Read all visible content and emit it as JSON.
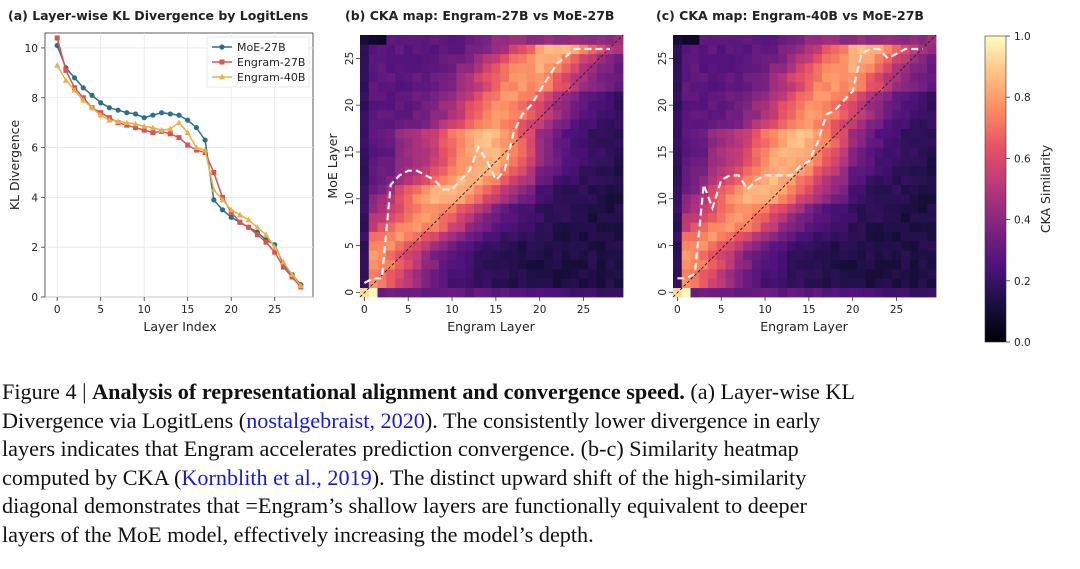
{
  "chart_data": [
    {
      "type": "line",
      "title": "(a) Layer-wise KL Divergence by LogitLens",
      "xlabel": "Layer Index",
      "ylabel": "KL Divergence",
      "xlim": [
        -1.4,
        29.4
      ],
      "ylim": [
        0,
        10.6
      ],
      "xticks": [
        "0",
        "5",
        "10",
        "15",
        "20",
        "25"
      ],
      "yticks": [
        "0",
        "2",
        "4",
        "6",
        "8",
        "10"
      ],
      "grid": true,
      "legend_position": "top-right",
      "x": [
        0,
        1,
        2,
        3,
        4,
        5,
        6,
        7,
        8,
        9,
        10,
        11,
        12,
        13,
        14,
        15,
        16,
        17,
        18,
        19,
        20,
        21,
        22,
        23,
        24,
        25,
        26,
        27,
        28
      ],
      "series": [
        {
          "name": "MoE-27B",
          "color": "#2b6f8c",
          "marker": "circle",
          "values": [
            10.1,
            9.2,
            8.8,
            8.4,
            8.1,
            7.8,
            7.6,
            7.5,
            7.4,
            7.35,
            7.2,
            7.3,
            7.4,
            7.35,
            7.3,
            7.1,
            6.8,
            6.3,
            3.9,
            3.5,
            3.2,
            3.0,
            2.8,
            2.6,
            2.3,
            2.1,
            1.3,
            0.9,
            0.5
          ]
        },
        {
          "name": "Engram-27B",
          "color": "#d9534f",
          "marker": "square",
          "values": [
            10.4,
            9.1,
            8.4,
            8.0,
            7.6,
            7.4,
            7.2,
            7.0,
            6.9,
            6.8,
            6.7,
            6.6,
            6.65,
            6.55,
            6.4,
            6.1,
            5.9,
            5.8,
            5.0,
            4.0,
            3.4,
            3.0,
            2.8,
            2.5,
            2.2,
            1.8,
            1.2,
            0.8,
            0.4
          ]
        },
        {
          "name": "Engram-40B",
          "color": "#e8b04a",
          "marker": "triangle",
          "values": [
            9.3,
            8.7,
            8.3,
            7.9,
            7.6,
            7.3,
            7.1,
            7.05,
            7.0,
            6.95,
            6.85,
            6.8,
            6.7,
            6.75,
            7.0,
            6.6,
            6.0,
            5.9,
            4.3,
            3.9,
            3.5,
            3.3,
            3.1,
            2.8,
            2.5,
            2.0,
            1.4,
            0.9,
            0.45
          ]
        }
      ]
    },
    {
      "type": "heatmap",
      "title": "(b) CKA map: Engram-27B vs MoE-27B",
      "xlabel": "Engram Layer",
      "ylabel": "MoE Layer",
      "xticks": [
        "0",
        "5",
        "10",
        "15",
        "20",
        "25"
      ],
      "yticks": [
        "0",
        "5",
        "10",
        "15",
        "20",
        "25"
      ],
      "n_x": 30,
      "n_y": 28,
      "argmax_x": [
        0,
        0,
        0,
        1,
        1,
        2,
        4,
        6,
        7,
        8,
        9,
        10,
        12,
        13,
        14,
        14,
        14,
        14,
        15,
        16,
        16,
        17,
        18,
        18,
        19,
        20,
        22,
        22
      ],
      "argmax_line_y": [
        1,
        1.5,
        1.5,
        11.5,
        12.5,
        13,
        13,
        12.5,
        12,
        11,
        11,
        12,
        13,
        15.5,
        14,
        12,
        13,
        17,
        19,
        20,
        21.5,
        23,
        24.5,
        25.2,
        26,
        26,
        26,
        26,
        26
      ],
      "vmin": 0,
      "vmax": 1
    },
    {
      "type": "heatmap",
      "title": "(c) CKA map: Engram-40B vs MoE-27B",
      "xlabel": "Engram Layer",
      "ylabel": "",
      "xticks": [
        "0",
        "5",
        "10",
        "15",
        "20",
        "25"
      ],
      "yticks": [
        "0",
        "5",
        "10",
        "15",
        "20",
        "25"
      ],
      "n_x": 30,
      "n_y": 28,
      "argmax_x": [
        0,
        0,
        0,
        1,
        1,
        2,
        4,
        6,
        7,
        8,
        9,
        10,
        11,
        12,
        13,
        13,
        14,
        14,
        15,
        16,
        16,
        17,
        18,
        18,
        19,
        20,
        21,
        22
      ],
      "argmax_line_y": [
        1.5,
        1.5,
        2,
        11.5,
        9,
        12,
        12.5,
        12.5,
        11,
        12,
        12.5,
        12.5,
        12.5,
        12.5,
        13.5,
        14,
        16,
        19,
        19.5,
        20.5,
        21.5,
        25.5,
        26,
        26,
        25,
        25.5,
        26,
        26,
        26
      ],
      "vmin": 0,
      "vmax": 1
    },
    {
      "type": "colorbar",
      "label": "CKA Similarity",
      "ticks": [
        "1.0",
        "0.8",
        "0.6",
        "0.4",
        "0.2",
        "0.0"
      ],
      "vmin": 0,
      "vmax": 1
    }
  ],
  "caption": {
    "line1_a": "Figure 4 | ",
    "line1_bold": "Analysis of representational alignment and convergence speed.",
    "line1_b": " (a) Layer-wise KL",
    "line2_a": "Divergence via LogitLens (",
    "line2_cite": "nostalgebraist, 2020",
    "line2_b": ").  The consistently lower divergence in early",
    "line3": "layers indicates that Engram accelerates prediction convergence.  (b-c) Similarity heatmap",
    "line4_a": "computed by CKA (",
    "line4_cite": "Kornblith et al., 2019",
    "line4_b": ").  The distinct upward shift of the high-similarity",
    "line5": "diagonal demonstrates that =Engram’s shallow layers are functionally equivalent to deeper",
    "line6": "layers of the MoE model, effectively increasing the model’s depth."
  }
}
